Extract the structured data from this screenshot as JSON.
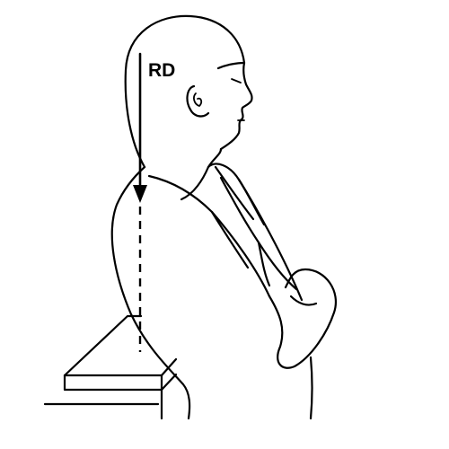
{
  "diagram": {
    "reference_label": "RD"
  },
  "colors": {
    "ink": "#000000",
    "background": "#ffffff"
  }
}
